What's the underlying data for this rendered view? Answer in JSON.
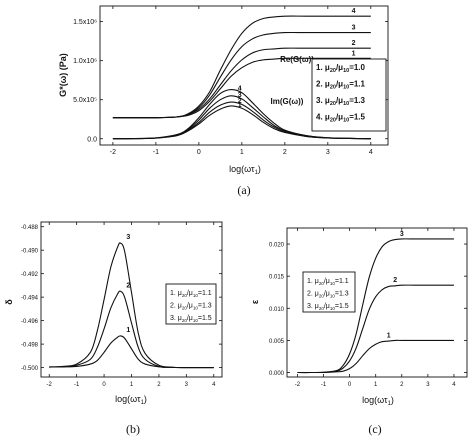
{
  "chart_data": [
    {
      "id": "a",
      "type": "line",
      "caption": "(a)",
      "ylabel": "G*(ω) (Pa)",
      "xlabel": "log(ωτ",
      "xlabel_sub": "1",
      "xlabel_close": ")",
      "xlim": [
        -2.3,
        4.4
      ],
      "ylim": [
        -0.08,
        1.7
      ],
      "x_ticks": [
        -2,
        -1,
        0,
        1,
        2,
        3,
        4
      ],
      "y_ticks": [
        {
          "v": 0.0,
          "label": "0.0"
        },
        {
          "v": 0.5,
          "label": "5.0x10⁵"
        },
        {
          "v": 1.0,
          "label": "1.0x10⁶"
        },
        {
          "v": 1.5,
          "label": "1.5x10⁶"
        }
      ],
      "x": [
        -2,
        -1.5,
        -1,
        -0.5,
        -0.25,
        0,
        0.25,
        0.5,
        0.75,
        1,
        1.25,
        1.5,
        1.75,
        2,
        2.5,
        3,
        3.5,
        4
      ],
      "series": [
        {
          "group": "re",
          "label": "1",
          "values": [
            0.27,
            0.27,
            0.27,
            0.28,
            0.3,
            0.36,
            0.48,
            0.64,
            0.8,
            0.91,
            0.98,
            1.01,
            1.02,
            1.03,
            1.03,
            1.03,
            1.03,
            1.03
          ]
        },
        {
          "group": "re",
          "label": "2",
          "values": [
            0.27,
            0.27,
            0.27,
            0.28,
            0.31,
            0.38,
            0.51,
            0.69,
            0.87,
            1.01,
            1.1,
            1.14,
            1.15,
            1.16,
            1.16,
            1.16,
            1.16,
            1.16
          ]
        },
        {
          "group": "re",
          "label": "3",
          "values": [
            0.27,
            0.27,
            0.27,
            0.28,
            0.31,
            0.4,
            0.56,
            0.79,
            1.01,
            1.18,
            1.28,
            1.33,
            1.35,
            1.36,
            1.36,
            1.36,
            1.36,
            1.36
          ]
        },
        {
          "group": "re",
          "label": "4",
          "values": [
            0.27,
            0.27,
            0.27,
            0.28,
            0.32,
            0.42,
            0.6,
            0.88,
            1.14,
            1.35,
            1.48,
            1.54,
            1.56,
            1.57,
            1.57,
            1.57,
            1.57,
            1.57
          ]
        },
        {
          "group": "im",
          "label": "1",
          "values": [
            0.0,
            0.002,
            0.008,
            0.04,
            0.1,
            0.19,
            0.3,
            0.38,
            0.42,
            0.39,
            0.31,
            0.21,
            0.13,
            0.08,
            0.03,
            0.01,
            0.004,
            0.001
          ]
        },
        {
          "group": "im",
          "label": "2",
          "values": [
            0.0,
            0.002,
            0.009,
            0.045,
            0.11,
            0.21,
            0.34,
            0.43,
            0.47,
            0.44,
            0.35,
            0.24,
            0.15,
            0.09,
            0.03,
            0.01,
            0.004,
            0.001
          ]
        },
        {
          "group": "im",
          "label": "3",
          "values": [
            0.0,
            0.002,
            0.01,
            0.05,
            0.12,
            0.24,
            0.39,
            0.5,
            0.55,
            0.51,
            0.4,
            0.28,
            0.17,
            0.1,
            0.04,
            0.012,
            0.004,
            0.001
          ]
        },
        {
          "group": "im",
          "label": "4",
          "values": [
            0.0,
            0.003,
            0.011,
            0.055,
            0.13,
            0.27,
            0.44,
            0.58,
            0.63,
            0.59,
            0.46,
            0.32,
            0.2,
            0.11,
            0.04,
            0.013,
            0.005,
            0.001
          ]
        }
      ],
      "annotations": {
        "re": "Re(G(ω))",
        "im": "Im(G(ω))"
      },
      "legend": {
        "placement": "right",
        "entries": [
          {
            "n": "1.",
            "mu": "μ",
            "sub1": "20",
            "mid": "/μ",
            "sub2": "10",
            "val": "=1.0"
          },
          {
            "n": "2.",
            "mu": "μ",
            "sub1": "20",
            "mid": "/μ",
            "sub2": "10",
            "val": "=1.1"
          },
          {
            "n": "3.",
            "mu": "μ",
            "sub1": "20",
            "mid": "/μ",
            "sub2": "10",
            "val": "=1.3"
          },
          {
            "n": "4.",
            "mu": "μ",
            "sub1": "20",
            "mid": "/μ",
            "sub2": "10",
            "val": "=1.5"
          }
        ]
      }
    },
    {
      "id": "b",
      "type": "line",
      "caption": "(b)",
      "ylabel": "δ",
      "xlabel": "log(ωτ",
      "xlabel_sub": "1",
      "xlabel_close": ")",
      "xlim": [
        -2.3,
        4.3
      ],
      "ylim": [
        -0.5008,
        -0.4876
      ],
      "x_ticks": [
        -2,
        -1,
        0,
        1,
        2,
        3,
        4
      ],
      "y_ticks": [
        {
          "v": -0.5,
          "label": "-0.500"
        },
        {
          "v": -0.498,
          "label": "-0.498"
        },
        {
          "v": -0.496,
          "label": "-0.496"
        },
        {
          "v": -0.494,
          "label": "-0.494"
        },
        {
          "v": -0.492,
          "label": "-0.492"
        },
        {
          "v": -0.49,
          "label": "-0.490"
        },
        {
          "v": -0.488,
          "label": "-0.488"
        }
      ],
      "x": [
        -2,
        -1.5,
        -1,
        -0.5,
        -0.25,
        0,
        0.25,
        0.5,
        0.6,
        0.75,
        1,
        1.25,
        1.5,
        2,
        2.5,
        3,
        3.5,
        4
      ],
      "series": [
        {
          "label": "1",
          "values": [
            -0.49995,
            -0.49994,
            -0.4999,
            -0.4997,
            -0.4994,
            -0.4987,
            -0.4979,
            -0.4974,
            -0.4973,
            -0.4975,
            -0.4984,
            -0.4993,
            -0.4997,
            -0.49993,
            -0.49998,
            -0.5,
            -0.5,
            -0.5
          ]
        },
        {
          "label": "2",
          "values": [
            -0.49995,
            -0.49993,
            -0.4998,
            -0.4993,
            -0.4983,
            -0.4967,
            -0.4949,
            -0.4937,
            -0.4935,
            -0.494,
            -0.4962,
            -0.4983,
            -0.4993,
            -0.4999,
            -0.49998,
            -0.5,
            -0.5,
            -0.5
          ]
        },
        {
          "label": "3",
          "values": [
            -0.49994,
            -0.4999,
            -0.4997,
            -0.4987,
            -0.4969,
            -0.4942,
            -0.4914,
            -0.4897,
            -0.4894,
            -0.4901,
            -0.4936,
            -0.4971,
            -0.4988,
            -0.4998,
            -0.49997,
            -0.5,
            -0.5,
            -0.5
          ]
        }
      ],
      "legend": {
        "placement": "right",
        "entries": [
          {
            "n": "1.",
            "mu": "μ",
            "sub1": "20",
            "mid": "/μ",
            "sub2": "10",
            "val": "=1.1"
          },
          {
            "n": "2.",
            "mu": "μ",
            "sub1": "20",
            "mid": "/μ",
            "sub2": "10",
            "val": "=1.3"
          },
          {
            "n": "3.",
            "mu": "μ",
            "sub1": "20",
            "mid": "/μ",
            "sub2": "10",
            "val": "=1.5"
          }
        ]
      }
    },
    {
      "id": "c",
      "type": "line",
      "caption": "(c)",
      "ylabel": "ε",
      "xlabel": "log(ωτ",
      "xlabel_sub": "1",
      "xlabel_close": ")",
      "xlim": [
        -2.4,
        4.5
      ],
      "ylim": [
        -0.0007,
        0.0225
      ],
      "x_ticks": [
        -2,
        -1,
        0,
        1,
        2,
        3,
        4
      ],
      "y_ticks": [
        {
          "v": 0.0,
          "label": "0.000"
        },
        {
          "v": 0.005,
          "label": "0.005"
        },
        {
          "v": 0.01,
          "label": "0.010"
        },
        {
          "v": 0.015,
          "label": "0.015"
        },
        {
          "v": 0.02,
          "label": "0.020"
        }
      ],
      "x": [
        -2,
        -1.5,
        -1,
        -0.5,
        -0.25,
        0,
        0.25,
        0.5,
        0.75,
        1,
        1.25,
        1.5,
        1.75,
        2,
        2.5,
        3,
        3.5,
        4
      ],
      "series": [
        {
          "label": "1",
          "values": [
            0.0,
            0.0,
            1e-05,
            0.0001,
            0.0002,
            0.0006,
            0.0014,
            0.0026,
            0.0037,
            0.0044,
            0.0048,
            0.0049,
            0.005,
            0.005,
            0.005,
            0.005,
            0.005,
            0.005
          ]
        },
        {
          "label": "2",
          "values": [
            0.0,
            0.0,
            2e-05,
            0.0002,
            0.0007,
            0.0018,
            0.0038,
            0.0068,
            0.0098,
            0.0118,
            0.0129,
            0.0134,
            0.0135,
            0.0136,
            0.0136,
            0.0136,
            0.0136,
            0.0136
          ]
        },
        {
          "label": "3",
          "values": [
            0.0,
            0.0,
            3e-05,
            0.0003,
            0.0011,
            0.0029,
            0.006,
            0.0105,
            0.0148,
            0.0178,
            0.0196,
            0.0204,
            0.0207,
            0.0208,
            0.0208,
            0.0208,
            0.0208,
            0.0208
          ]
        }
      ],
      "legend": {
        "placement": "center",
        "entries": [
          {
            "n": "1.",
            "mu": "μ",
            "sub1": "20",
            "mid": "/μ",
            "sub2": "10",
            "val": "=1.1"
          },
          {
            "n": "2.",
            "mu": "μ",
            "sub1": "20",
            "mid": "/μ",
            "sub2": "10",
            "val": "=1.3"
          },
          {
            "n": "3.",
            "mu": "μ",
            "sub1": "20",
            "mid": "/μ",
            "sub2": "10",
            "val": "=1.5"
          }
        ]
      }
    }
  ]
}
